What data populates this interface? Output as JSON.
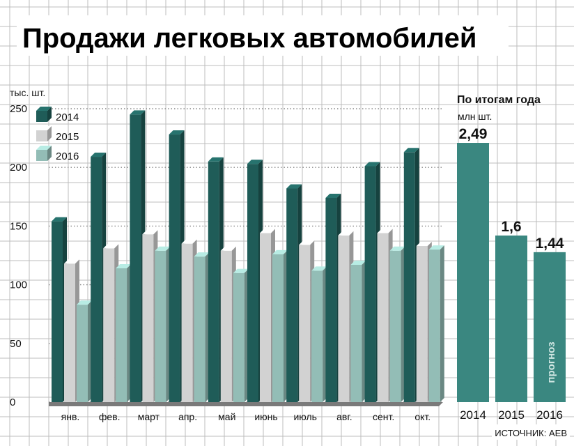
{
  "title": "Продажи легковых автомобилей",
  "source": "ИСТОЧНИК: АЕВ",
  "chart_data": [
    {
      "type": "bar",
      "ylabel": "тыс. шт.",
      "ylim": [
        0,
        250
      ],
      "yticks": [
        "0",
        "50",
        "100",
        "150",
        "200",
        "250"
      ],
      "grid": true,
      "legend_position": "top-left",
      "categories": [
        "янв.",
        "фев.",
        "март",
        "апр.",
        "май",
        "июнь",
        "июль",
        "авг.",
        "сент.",
        "окт."
      ],
      "series": [
        {
          "name": "2014",
          "color": "#1f5c58",
          "values": [
            154,
            209,
            245,
            228,
            205,
            203,
            182,
            174,
            201,
            213
          ]
        },
        {
          "name": "2015",
          "color": "#d2d2d2",
          "values": [
            118,
            131,
            143,
            135,
            129,
            144,
            134,
            142,
            144,
            133
          ]
        },
        {
          "name": "2016",
          "color": "#93bdb6",
          "values": [
            83,
            114,
            129,
            124,
            110,
            126,
            112,
            117,
            129,
            130
          ]
        }
      ]
    },
    {
      "type": "bar",
      "title": "По итогам года",
      "ylabel": "млн шт.",
      "ylim": [
        0,
        2.6
      ],
      "color": "#3a8780",
      "categories": [
        "2014",
        "2015",
        "2016"
      ],
      "values": [
        2.49,
        1.6,
        1.44
      ],
      "data_labels": [
        "2,49",
        "1,6",
        "1,44"
      ],
      "annotation": "прогноз"
    }
  ]
}
